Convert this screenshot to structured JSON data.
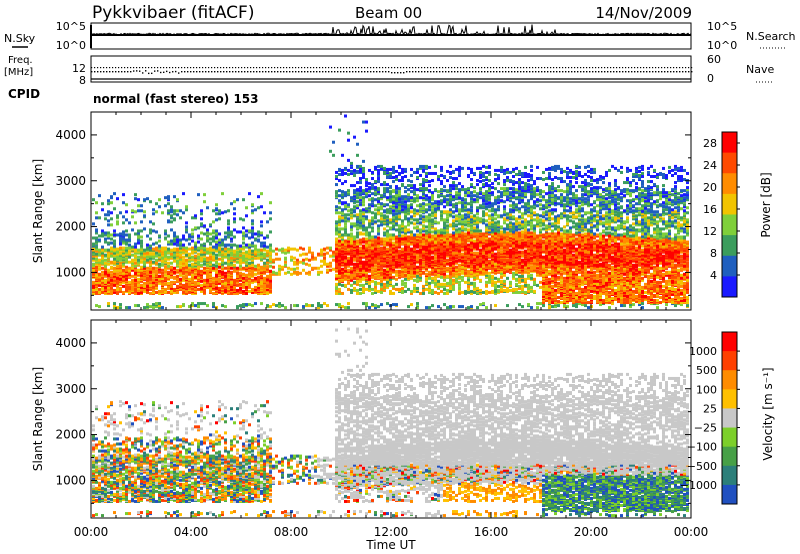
{
  "header": {
    "station": "Pykkvibaer (fitACF)",
    "beam": "Beam 00",
    "date": "14/Nov/2009"
  },
  "noise_panel": {
    "left_label": "N.Sky",
    "right_label": "N.Search",
    "left_ticks": [
      "10^5",
      "10^0"
    ],
    "right_ticks": [
      "10^5",
      "10^0"
    ]
  },
  "freq_panel": {
    "left_label_1": "Freq.",
    "left_label_2": "[MHz]",
    "left_ticks": [
      "12",
      "8"
    ],
    "right_label": "Nave",
    "right_ticks": [
      "60",
      "0"
    ]
  },
  "cpid": {
    "label": "CPID",
    "text": "normal (fast stereo) 153"
  },
  "time_axis": {
    "label": "Time UT",
    "ticks": [
      "00:00",
      "04:00",
      "08:00",
      "12:00",
      "16:00",
      "20:00",
      "00:00"
    ]
  },
  "colors": {
    "power_scale": [
      "#1a1aff",
      "#1f5fbf",
      "#3b9d5d",
      "#7fcf3a",
      "#f2c400",
      "#ff8c00",
      "#ff4a00",
      "#ff0000"
    ],
    "velocity_scale": [
      "#2050c0",
      "#2c7f7a",
      "#47a047",
      "#7ccf2a",
      "#c8c8c8",
      "#ffc000",
      "#ff8c00",
      "#ff4000",
      "#ff0000"
    ]
  },
  "chart_data": [
    {
      "type": "heatmap",
      "title": "",
      "xlabel": "",
      "ylabel": "Slant Range [km]",
      "x_range_hours": [
        0,
        24
      ],
      "ylim": [
        180,
        4500
      ],
      "yticks": [
        "1000",
        "2000",
        "3000",
        "4000"
      ],
      "colorbar": {
        "label": "Power [dB]",
        "ticks": [
          "4",
          "8",
          "12",
          "16",
          "20",
          "24",
          "28"
        ],
        "range": [
          0,
          30
        ]
      }
    },
    {
      "type": "heatmap",
      "title": "",
      "xlabel": "Time UT",
      "ylabel": "Slant Range [km]",
      "x_range_hours": [
        0,
        24
      ],
      "ylim": [
        180,
        4500
      ],
      "yticks": [
        "1000",
        "2000",
        "3000",
        "4000"
      ],
      "colorbar": {
        "label": "Velocity [m s⁻¹]",
        "ticks": [
          "1000",
          "500",
          "100",
          "25",
          "−25",
          "−100",
          "−500",
          "−1000"
        ]
      }
    }
  ]
}
